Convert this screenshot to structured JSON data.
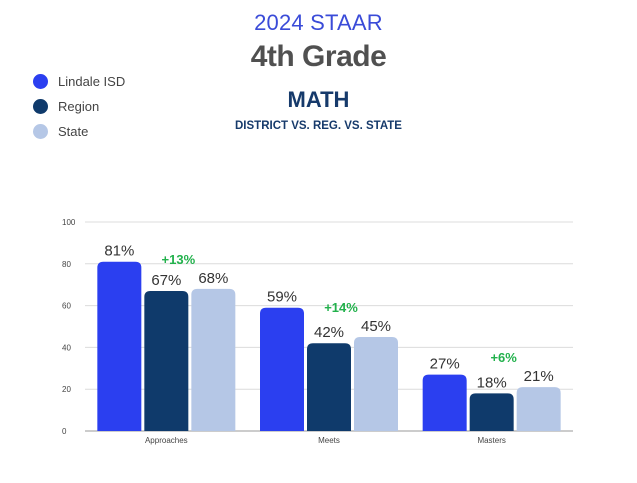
{
  "header": {
    "line1": "2024 STAAR",
    "line2": "4th Grade",
    "line3": "MATH",
    "line4": "DISTRICT VS. REG. VS. STATE"
  },
  "colors": {
    "lindale": "#2b3ff0",
    "region": "#0f3a6b",
    "state": "#b5c7e6",
    "diff": "#22b14c",
    "label": "#333333"
  },
  "chart_data": {
    "type": "bar",
    "categories": [
      "Approaches",
      "Meets",
      "Masters"
    ],
    "series": [
      {
        "name": "Lindale ISD",
        "values": [
          81,
          59,
          27
        ],
        "labels": [
          "81%",
          "59%",
          "27%"
        ]
      },
      {
        "name": "Region",
        "values": [
          67,
          42,
          18
        ],
        "labels": [
          "67%",
          "42%",
          "18%"
        ]
      },
      {
        "name": "State",
        "values": [
          68,
          45,
          21
        ],
        "labels": [
          "68%",
          "45%",
          "21%"
        ]
      }
    ],
    "annotations": [
      "+13%",
      "+14%",
      "+6%"
    ],
    "yticks": [
      0,
      20,
      40,
      60,
      80,
      100
    ],
    "ylim": [
      0,
      100
    ],
    "grid": true,
    "legend": "top-left"
  }
}
